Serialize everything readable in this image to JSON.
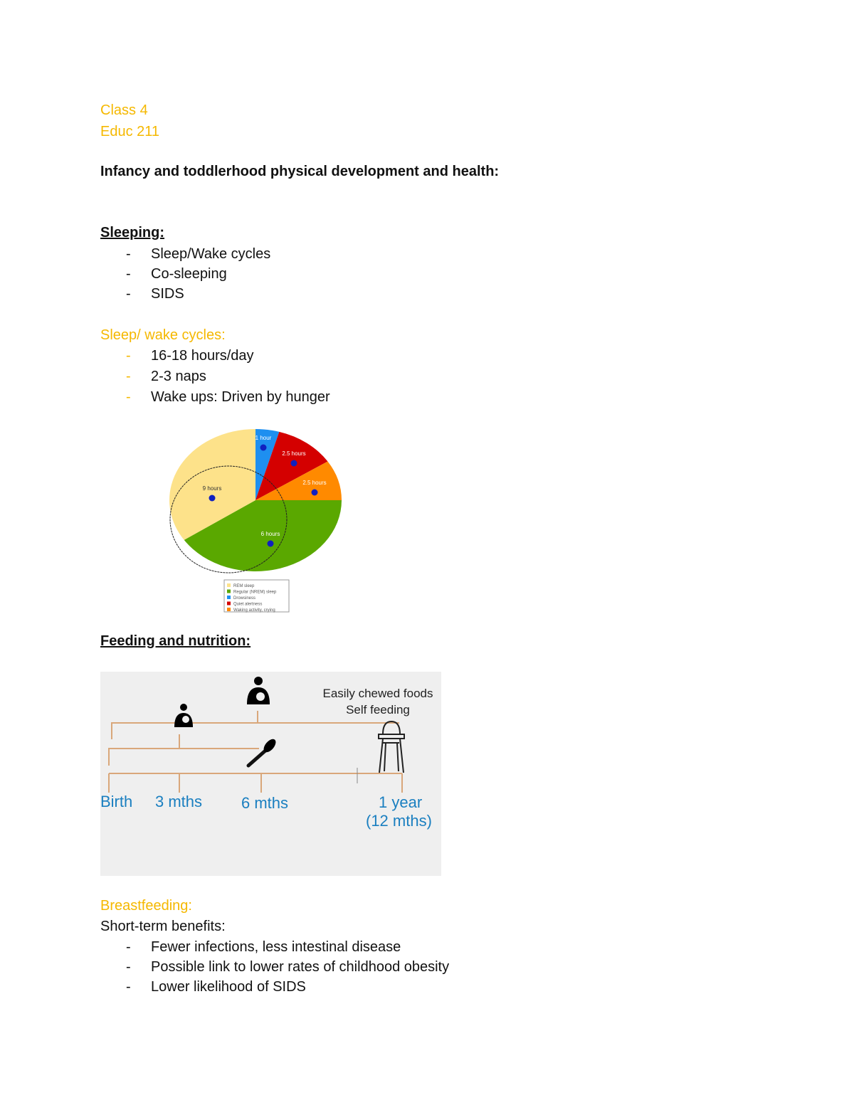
{
  "header": {
    "class": "Class 4",
    "course": "Educ 211"
  },
  "title": "Infancy and toddlerhood physical development and health:",
  "sleeping": {
    "heading": "Sleeping:",
    "items": [
      "Sleep/Wake cycles",
      "Co-sleeping",
      "SIDS"
    ]
  },
  "cycles": {
    "heading": "Sleep/ wake cycles:",
    "items": [
      "16-18 hours/day",
      "2-3 naps",
      "Wake ups: Driven by hunger"
    ]
  },
  "pie": {
    "slices": [
      {
        "label": "1 hour",
        "color": "#1e8ff0"
      },
      {
        "label": "2.5 hours",
        "color": "#d40000"
      },
      {
        "label": "2.5 hours",
        "color": "#ff8a00"
      },
      {
        "label": "6 hours",
        "color": "#5aa800"
      },
      {
        "label": "9 hours",
        "color": "#fde28a"
      }
    ],
    "legend": [
      {
        "label": "REM sleep",
        "color": "#fde28a"
      },
      {
        "label": "Regular (NREM) sleep",
        "color": "#5aa800"
      },
      {
        "label": "Drowsiness",
        "color": "#1e8ff0"
      },
      {
        "label": "Quiet alertness",
        "color": "#d40000"
      },
      {
        "label": "Waking activity, crying",
        "color": "#ff8a00"
      }
    ]
  },
  "feeding": {
    "heading": "Feeding and nutrition:",
    "timeline": {
      "foods": "Easily chewed foods",
      "self": "Self feeding",
      "birth": "Birth",
      "m3": "3 mths",
      "m6": "6 mths",
      "y1": "1 year",
      "y1b": "(12 mths)"
    }
  },
  "breast": {
    "heading": "Breastfeeding:",
    "sub": "Short-term benefits:",
    "items": [
      "Fewer infections, less intestinal disease",
      "Possible link to lower rates of childhood obesity",
      "Lower likelihood of SIDS"
    ]
  }
}
